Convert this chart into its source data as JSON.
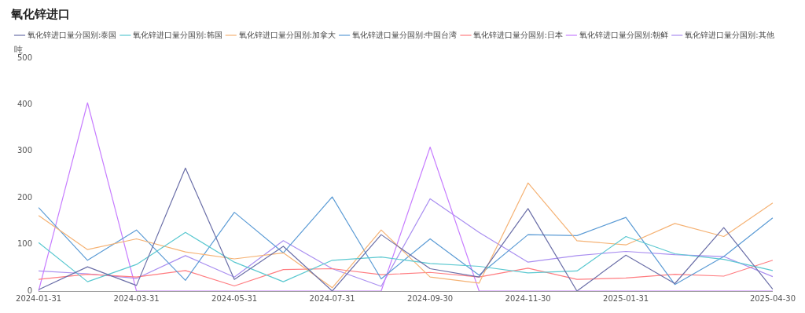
{
  "chart_data": {
    "type": "line",
    "title": "氧化锌进口",
    "ylabel": "吨",
    "categories": [
      "2024-01-31",
      null,
      "2024-03-31",
      null,
      "2024-05-31",
      null,
      "2024-07-31",
      null,
      "2024-09-30",
      null,
      "2024-11-30",
      null,
      "2025-01-31",
      null,
      null,
      "2025-04-30"
    ],
    "series": [
      {
        "name": "氧化锌进口量分国别:泰国",
        "color": "#6b6fa8",
        "values": [
          3,
          52,
          12,
          264,
          25,
          96,
          0,
          121,
          48,
          30,
          177,
          0,
          77,
          16,
          136,
          4
        ]
      },
      {
        "name": "氧化锌进口量分国别:韩国",
        "color": "#5ac8d0",
        "values": [
          104,
          20,
          57,
          126,
          62,
          20,
          66,
          73,
          59,
          53,
          39,
          43,
          117,
          80,
          68,
          44
        ]
      },
      {
        "name": "氧化锌进口量分国别:加拿大",
        "color": "#f5b274",
        "values": [
          162,
          89,
          112,
          84,
          69,
          82,
          7,
          131,
          30,
          17,
          232,
          108,
          99,
          145,
          117,
          189
        ]
      },
      {
        "name": "氧化锌进口量分国别:中国台湾",
        "color": "#5b9bd5",
        "values": [
          179,
          66,
          131,
          23,
          169,
          82,
          202,
          26,
          112,
          34,
          121,
          119,
          158,
          14,
          74,
          157
        ]
      },
      {
        "name": "氧化锌进口量分国别:日本",
        "color": "#ff7c80",
        "values": [
          25,
          36,
          30,
          44,
          11,
          46,
          48,
          35,
          40,
          30,
          49,
          25,
          28,
          36,
          32,
          66
        ]
      },
      {
        "name": "氧化锌进口量分国别:朝鲜",
        "color": "#c77dff",
        "values": [
          0,
          404,
          0,
          0,
          0,
          0,
          0,
          0,
          309,
          0,
          0,
          0,
          0,
          0,
          0,
          0
        ]
      },
      {
        "name": "氧化锌进口量分国别:其他",
        "color": "#a98ef0",
        "values": [
          43,
          37,
          27,
          76,
          30,
          108,
          48,
          10,
          198,
          126,
          62,
          76,
          85,
          78,
          74,
          31
        ]
      }
    ],
    "ylim": [
      0,
      500
    ],
    "yticks": [
      0,
      100,
      200,
      300,
      400,
      500
    ],
    "grid": false,
    "legend": "top left",
    "marker": "none",
    "line_style": "solid"
  }
}
